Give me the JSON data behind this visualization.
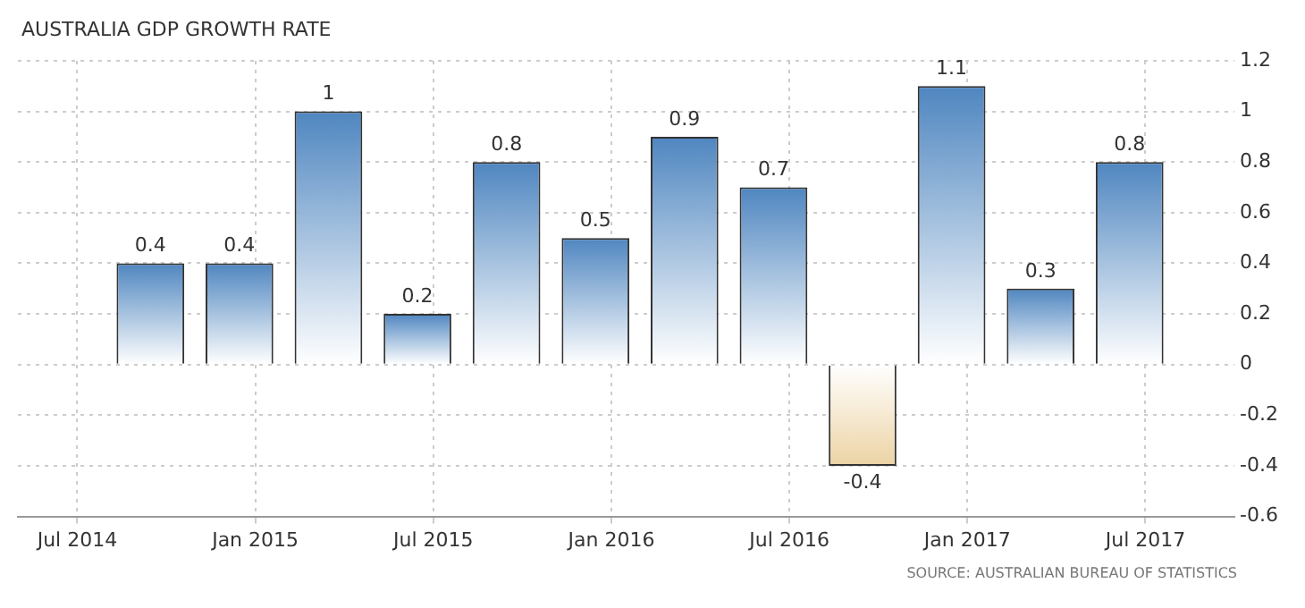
{
  "chart_data": {
    "type": "bar",
    "title": "AUSTRALIA GDP GROWTH RATE",
    "x": [
      "2014-09-15",
      "2014-12-15",
      "2015-03-15",
      "2015-06-15",
      "2015-09-15",
      "2015-12-15",
      "2016-03-15",
      "2016-06-15",
      "2016-09-15",
      "2016-12-15",
      "2017-03-15",
      "2017-06-15"
    ],
    "values": [
      0.4,
      0.4,
      1,
      0.2,
      0.8,
      0.5,
      0.9,
      0.7,
      -0.4,
      1.1,
      0.3,
      0.8
    ],
    "colors": [
      "#4f86c0",
      "#4f86c0",
      "#4f86c0",
      "#4f86c0",
      "#4f86c0",
      "#4f86c0",
      "#4f86c0",
      "#4f86c0",
      "#ecd3a4",
      "#4f86c0",
      "#4f86c0",
      "#4f86c0"
    ],
    "xlim": [
      "2014-05-01",
      "2017-10-01"
    ],
    "xticks": [
      {
        "value": "2014-07-01",
        "label": "Jul 2014"
      },
      {
        "value": "2015-01-01",
        "label": "Jan 2015"
      },
      {
        "value": "2015-07-01",
        "label": "Jul 2015"
      },
      {
        "value": "2016-01-01",
        "label": "Jan 2016"
      },
      {
        "value": "2016-07-01",
        "label": "Jul 2016"
      },
      {
        "value": "2017-01-01",
        "label": "Jan 2017"
      },
      {
        "value": "2017-07-01",
        "label": "Jul 2017"
      }
    ],
    "ylim": [
      -0.6,
      1.2
    ],
    "yticks": [
      -0.6,
      -0.4,
      -0.2,
      0,
      0.2,
      0.4,
      0.6,
      0.8,
      1,
      1.2
    ],
    "grid": true,
    "legend": false,
    "data_labels": true,
    "annotations": [
      "SOURCE: AUSTRALIAN BUREAU OF STATISTICS"
    ]
  }
}
